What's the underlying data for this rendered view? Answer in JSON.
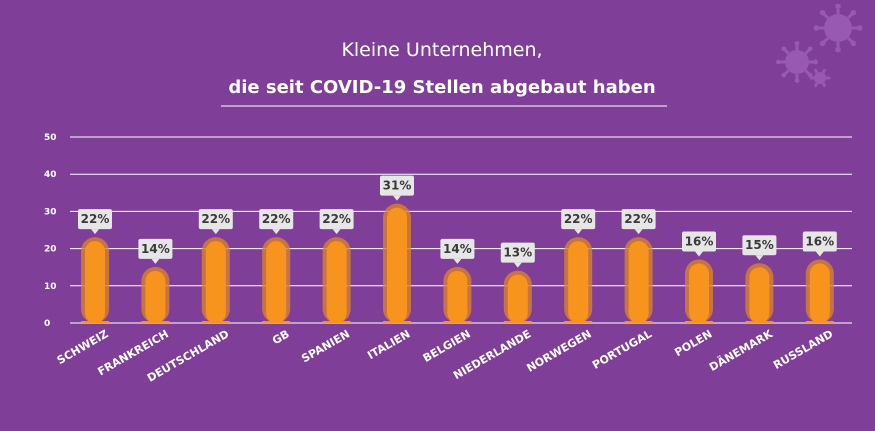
{
  "chart_data": {
    "type": "bar",
    "title": "Kleine Unternehmen,",
    "subtitle": "die seit COVID-19 Stellen abgebaut haben",
    "categories": [
      "SCHWEIZ",
      "FRANKREICH",
      "DEUTSCHLAND",
      "GB",
      "SPANIEN",
      "ITALIEN",
      "BELGIEN",
      "NIEDERLANDE",
      "NORWEGEN",
      "PORTUGAL",
      "POLEN",
      "DÄNEMARK",
      "RUSSLAND"
    ],
    "values": [
      22,
      14,
      22,
      22,
      22,
      31,
      14,
      13,
      22,
      22,
      16,
      15,
      16
    ],
    "value_labels": [
      "22%",
      "14%",
      "22%",
      "22%",
      "22%",
      "31%",
      "14%",
      "13%",
      "22%",
      "22%",
      "16%",
      "15%",
      "16%"
    ],
    "yticks": [
      "0",
      "10",
      "20",
      "30",
      "40",
      "50"
    ],
    "ylim": [
      0,
      50
    ],
    "grid": true,
    "colors": {
      "background": "#7f3f98",
      "bar": "#f7941d",
      "bar_halo": "#d9822f",
      "label_box": "#e6e6e6",
      "label_text": "#3a3a3a",
      "text": "#ffffff",
      "virus_icon": "#9a5cb5"
    },
    "decoration_icon": "virus-icon"
  }
}
